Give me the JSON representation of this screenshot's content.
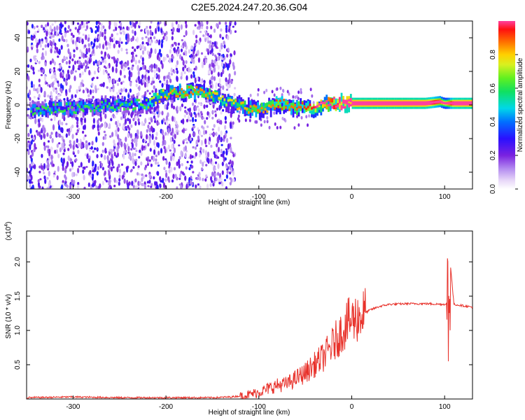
{
  "title": "C2E5.2024.247.20.36.G04",
  "top_panel": {
    "ylabel": "Frequency (Hz)",
    "xlabel": "Height of straight line (km)",
    "colorbar_label": "Normalized spectral amplitude",
    "colorbar_ticks": [
      "0.0",
      "0.2",
      "0.4",
      "0.6",
      "0.8"
    ],
    "colorbar_tick_values": [
      0.0,
      0.2,
      0.4,
      0.6,
      0.8
    ]
  },
  "bottom_panel": {
    "ylabel": "SNR (10 * v/v)",
    "scale_note": "(x10",
    "scale_exp": "4",
    "scale_close": ")",
    "xlabel": "Height of straight line (km)"
  },
  "chart_data": [
    {
      "type": "heatmap",
      "title": "C2E5.2024.247.20.36.G04",
      "xlabel": "Height of straight line (km)",
      "ylabel": "Frequency (Hz)",
      "xlim": [
        -350,
        130
      ],
      "ylim": [
        -50,
        50
      ],
      "xticks": [
        -300,
        -200,
        -100,
        0,
        100
      ],
      "yticks": [
        -40,
        -20,
        0,
        20,
        40
      ],
      "colorbar": {
        "label": "Normalized spectral amplitude",
        "range": [
          0,
          1
        ],
        "ticks": [
          0.0,
          0.2,
          0.4,
          0.6,
          0.8
        ]
      },
      "ridge": {
        "x": [
          -345,
          -320,
          -300,
          -280,
          -260,
          -240,
          -220,
          -200,
          -180,
          -165,
          -150,
          -135,
          -125,
          -115,
          -100,
          -90,
          -80,
          -70,
          -60,
          -50,
          -40,
          -30,
          -20,
          -10,
          0,
          20,
          40,
          60,
          80,
          95,
          100,
          110,
          130
        ],
        "frequency": [
          -3,
          -2,
          -2,
          -1,
          0,
          0,
          1,
          7,
          8,
          8,
          6,
          2,
          0,
          -1,
          -3,
          -2,
          1,
          0,
          -2,
          -1,
          -2,
          0,
          1,
          1,
          1,
          1,
          1,
          1,
          1,
          2,
          1,
          1,
          1
        ],
        "amplitude": [
          0.25,
          0.25,
          0.25,
          0.25,
          0.25,
          0.25,
          0.3,
          0.45,
          0.5,
          0.5,
          0.45,
          0.35,
          0.45,
          0.45,
          0.5,
          0.45,
          0.55,
          0.5,
          0.5,
          0.55,
          0.6,
          0.7,
          0.85,
          0.95,
          0.97,
          0.98,
          0.98,
          0.98,
          0.97,
          0.8,
          0.6,
          0.95,
          0.97
        ]
      }
    },
    {
      "type": "line",
      "xlabel": "Height of straight line (km)",
      "ylabel": "SNR (10 * v/v)",
      "xlim": [
        -350,
        130
      ],
      "ylim": [
        0,
        2.45
      ],
      "y_multiplier": 10000,
      "xticks": [
        -300,
        -200,
        -100,
        0,
        100
      ],
      "yticks": [
        0.5,
        1.0,
        1.5,
        2.0
      ],
      "series": [
        {
          "color": "#e8322b",
          "x": [
            -350,
            -300,
            -250,
            -200,
            -150,
            -130,
            -115,
            -100,
            -90,
            -80,
            -70,
            -60,
            -50,
            -40,
            -30,
            -20,
            -10,
            -5,
            0,
            10,
            20,
            30,
            40,
            60,
            80,
            100,
            102,
            104,
            106,
            110,
            120,
            130
          ],
          "y": [
            0.02,
            0.03,
            0.02,
            0.02,
            0.02,
            0.03,
            0.05,
            0.1,
            0.15,
            0.2,
            0.22,
            0.3,
            0.38,
            0.5,
            0.62,
            0.8,
            1.0,
            1.1,
            1.15,
            1.22,
            1.3,
            1.35,
            1.38,
            1.39,
            1.39,
            1.38,
            1.4,
            0.4,
            2.0,
            1.38,
            1.36,
            1.34
          ]
        }
      ]
    }
  ]
}
